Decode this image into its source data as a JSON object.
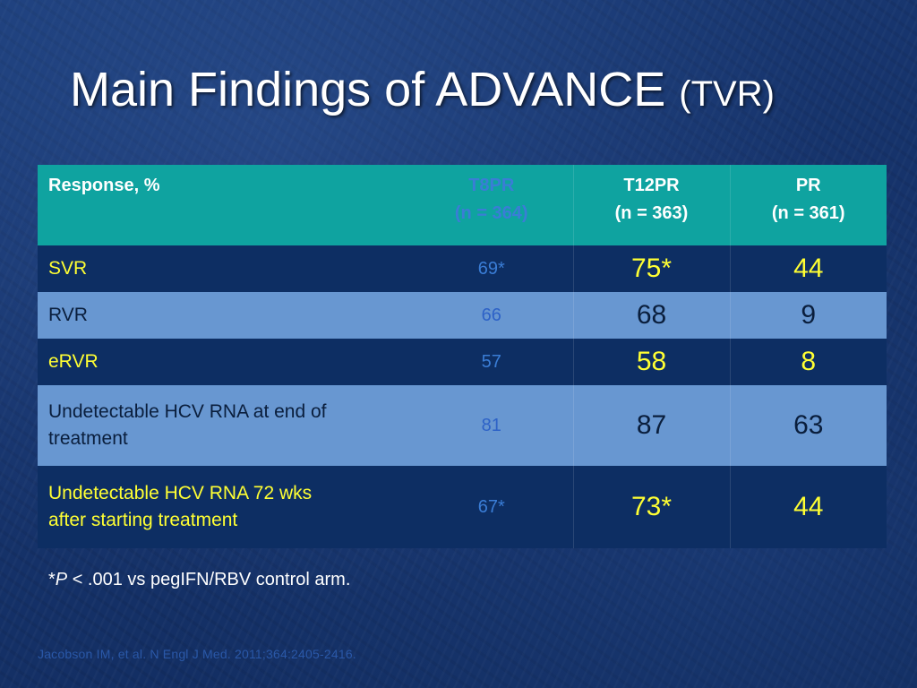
{
  "slide": {
    "title_main": "Main Findings of ADVANCE",
    "title_suffix": "(TVR)"
  },
  "table": {
    "headers": {
      "label": "Response, %",
      "t8": "T8PR",
      "t8_n": "(n = 364)",
      "t12": "T12PR",
      "t12_n": "(n = 363)",
      "pr": "PR",
      "pr_n": "(n = 361)"
    },
    "rows": [
      {
        "label": "SVR",
        "t8": "69*",
        "t12": "75*",
        "pr": "44"
      },
      {
        "label": "RVR",
        "t8": "66",
        "t12": "68",
        "pr": "9"
      },
      {
        "label": "eRVR",
        "t8": "57",
        "t12": "58",
        "pr": "8"
      },
      {
        "label_line1": "Undetectable HCV RNA at end of",
        "label_line2": "treatment",
        "t8": "81",
        "t12": "87",
        "pr": "63"
      },
      {
        "label_line1": "Undetectable HCV RNA 72 wks",
        "label_line2": "after starting treatment",
        "t8": "67*",
        "t12": "73*",
        "pr": "44"
      }
    ]
  },
  "footnote": {
    "star": "*",
    "p": "P",
    "rest": " < .001 vs pegIFN/RBV control arm."
  },
  "citation": "Jacobson IM, et al. N Engl J Med. 2011;364:2405-2416.",
  "colors": {
    "background": "#16336b",
    "header": "#0fa3a0",
    "row_dark": "#0d2e63",
    "row_light": "#6897d1",
    "yellow": "#ffff33",
    "t8_blue": "#3a7dd6"
  }
}
